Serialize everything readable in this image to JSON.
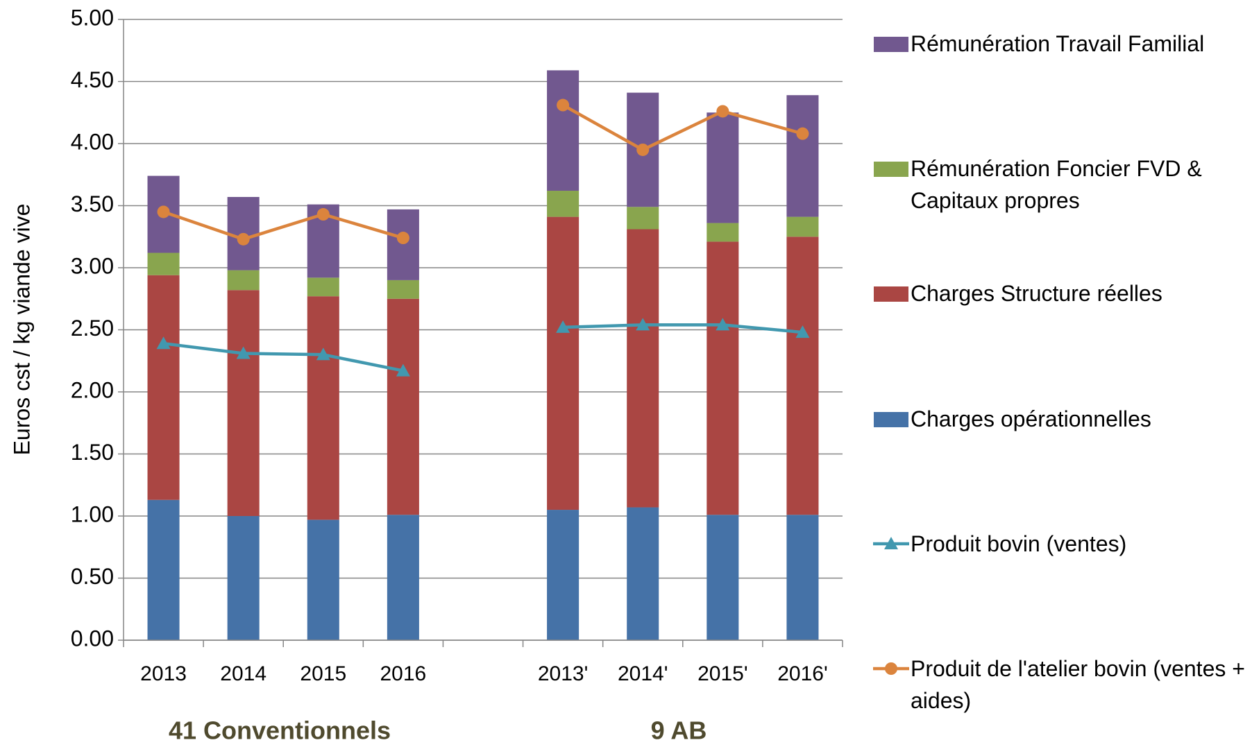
{
  "chart_data": {
    "type": "bar",
    "stacked": true,
    "y_axis_label": "Euros cst / kg viande vive",
    "categories": [
      "2013",
      "2014",
      "2015",
      "2016",
      null,
      "2013'",
      "2014'",
      "2015'",
      "2016'"
    ],
    "annotations": [
      "41 Conventionnels",
      "9 AB"
    ],
    "series": [
      {
        "name": "Charges opérationnelles",
        "type": "bar",
        "color": "#4572A7",
        "values": [
          1.13,
          1.0,
          0.97,
          1.01,
          null,
          1.05,
          1.07,
          1.01,
          1.01
        ]
      },
      {
        "name": "Charges Structure réelles",
        "type": "bar",
        "color": "#AA4643",
        "values": [
          1.81,
          1.82,
          1.8,
          1.74,
          null,
          2.36,
          2.24,
          2.2,
          2.24
        ]
      },
      {
        "name": "Rémunération Foncier FVD & Capitaux propres",
        "type": "bar",
        "color": "#89A54E",
        "values": [
          0.18,
          0.16,
          0.15,
          0.15,
          null,
          0.21,
          0.18,
          0.15,
          0.16
        ]
      },
      {
        "name": "Rémunération Travail Familial",
        "type": "bar",
        "color": "#71588F",
        "values": [
          0.62,
          0.59,
          0.59,
          0.57,
          null,
          0.97,
          0.92,
          0.89,
          0.98
        ]
      },
      {
        "name": "Produit bovin (ventes)",
        "type": "line",
        "marker": "triangle",
        "color": "#4198AF",
        "values": [
          2.39,
          2.31,
          2.3,
          2.17,
          null,
          2.52,
          2.54,
          2.54,
          2.48
        ]
      },
      {
        "name": "Produit de l'atelier bovin (ventes + aides)",
        "type": "line",
        "marker": "circle",
        "color": "#DB843D",
        "values": [
          3.45,
          3.23,
          3.43,
          3.24,
          null,
          4.31,
          3.95,
          4.26,
          4.08
        ]
      }
    ],
    "ylim": [
      0,
      5
    ],
    "yticks": [
      {
        "value": 0,
        "label": "0.00"
      },
      {
        "value": 0.5,
        "label": "0.50"
      },
      {
        "value": 1,
        "label": "1.00"
      },
      {
        "value": 1.5,
        "label": "1.50"
      },
      {
        "value": 2,
        "label": "2.00"
      },
      {
        "value": 2.5,
        "label": "2.50"
      },
      {
        "value": 3,
        "label": "3.00"
      },
      {
        "value": 3.5,
        "label": "3.50"
      },
      {
        "value": 4,
        "label": "4.00"
      },
      {
        "value": 4.5,
        "label": "4.50"
      },
      {
        "value": 5,
        "label": "5.00"
      }
    ],
    "grid": true,
    "legend": "right"
  }
}
